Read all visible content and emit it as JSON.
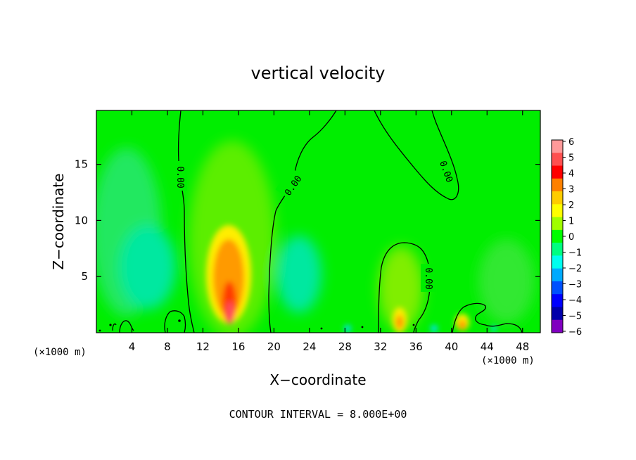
{
  "chart_data": {
    "type": "heatmap",
    "title": "vertical velocity",
    "xlabel": "X−coordinate",
    "ylabel": "Z−coordinate",
    "xlim": [
      0,
      50000
    ],
    "ylim": [
      0,
      19800
    ],
    "x_unit_label": "(×1000 m)",
    "y_unit_label": "(×1000 m)",
    "x_ticks": [
      4,
      8,
      12,
      16,
      20,
      24,
      28,
      32,
      36,
      40,
      44,
      48
    ],
    "y_ticks": [
      5,
      10,
      15
    ],
    "footer": "CONTOUR INTERVAL = 8.000E+00",
    "contour_label": "0.00",
    "colorbar": {
      "values": [
        6,
        5,
        4,
        3,
        2,
        1,
        0,
        -1,
        -2,
        -3,
        -4,
        -5,
        -6
      ],
      "labels": [
        "6",
        "5",
        "4",
        "3",
        "2",
        "1",
        "0",
        "−1",
        "−2",
        "−3",
        "−4",
        "−5",
        "−6"
      ],
      "colors": [
        "#ff9999",
        "#ff5050",
        "#ff0000",
        "#ff8000",
        "#ffcc00",
        "#ffff00",
        "#a0ff00",
        "#00ff00",
        "#00ff80",
        "#00ffee",
        "#00aaff",
        "#0050ff",
        "#0000ff",
        "#0000aa",
        "#8000c0"
      ]
    },
    "features": [
      {
        "name": "updraft",
        "x_km": 15.4,
        "z_km": 2.0,
        "w_max": 5
      },
      {
        "name": "updraft",
        "x_km": 34.2,
        "z_km": 1.0,
        "w_max": 3
      },
      {
        "name": "updraft",
        "x_km": 41.2,
        "z_km": 0.8,
        "w_max": 3
      },
      {
        "name": "downdraft",
        "x_km": 6.0,
        "z_km": 4.5,
        "w_min": -2
      },
      {
        "name": "downdraft",
        "x_km": 21.5,
        "z_km": 4.5,
        "w_min": -2
      }
    ]
  }
}
